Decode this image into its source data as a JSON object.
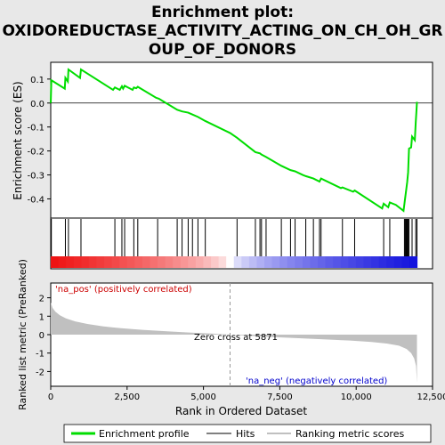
{
  "chart_data": {
    "type": "line",
    "title_lines": [
      "Enrichment plot:",
      "OXIDOREDUCTASE_ACTIVITY_ACTING_ON_CH_OH_GR",
      "OUP_OF_DONORS"
    ],
    "colors": {
      "es_line": "#00dd00",
      "hits": "#000000",
      "ranking": "#c0c0c0",
      "pos_bar": "#ee1111",
      "neg_bar": "#1111dd"
    },
    "es_panel": {
      "ylabel": "Enrichment score (ES)",
      "ylim": [
        -0.48,
        0.17
      ],
      "yticks": [
        -0.4,
        -0.3,
        -0.2,
        -0.1,
        0.0,
        0.1
      ],
      "ytick_labels": [
        "-0.4",
        "-0.3",
        "-0.2",
        "-0.1",
        "0.0",
        "0.1"
      ],
      "points": [
        [
          0,
          0.0
        ],
        [
          20,
          0.095
        ],
        [
          460,
          0.06
        ],
        [
          480,
          0.105
        ],
        [
          560,
          0.09
        ],
        [
          580,
          0.14
        ],
        [
          960,
          0.105
        ],
        [
          990,
          0.14
        ],
        [
          2040,
          0.055
        ],
        [
          2100,
          0.065
        ],
        [
          2260,
          0.055
        ],
        [
          2330,
          0.07
        ],
        [
          2370,
          0.06
        ],
        [
          2420,
          0.072
        ],
        [
          2680,
          0.055
        ],
        [
          2720,
          0.065
        ],
        [
          2800,
          0.062
        ],
        [
          2850,
          0.068
        ],
        [
          3450,
          0.022
        ],
        [
          3500,
          0.02
        ],
        [
          3540,
          0.018
        ],
        [
          4140,
          -0.028
        ],
        [
          4300,
          -0.035
        ],
        [
          4500,
          -0.04
        ],
        [
          4640,
          -0.048
        ],
        [
          4820,
          -0.058
        ],
        [
          5060,
          -0.075
        ],
        [
          5871,
          -0.125
        ],
        [
          6100,
          -0.145
        ],
        [
          6700,
          -0.205
        ],
        [
          6850,
          -0.21
        ],
        [
          6900,
          -0.215
        ],
        [
          7050,
          -0.225
        ],
        [
          7550,
          -0.262
        ],
        [
          7850,
          -0.28
        ],
        [
          8000,
          -0.285
        ],
        [
          8250,
          -0.3
        ],
        [
          8350,
          -0.305
        ],
        [
          8600,
          -0.315
        ],
        [
          8800,
          -0.328
        ],
        [
          8850,
          -0.315
        ],
        [
          9500,
          -0.355
        ],
        [
          9550,
          -0.352
        ],
        [
          9900,
          -0.37
        ],
        [
          9950,
          -0.365
        ],
        [
          10850,
          -0.44
        ],
        [
          10900,
          -0.42
        ],
        [
          11050,
          -0.435
        ],
        [
          11100,
          -0.415
        ],
        [
          11300,
          -0.425
        ],
        [
          11550,
          -0.45
        ],
        [
          11580,
          -0.42
        ],
        [
          11610,
          -0.39
        ],
        [
          11640,
          -0.36
        ],
        [
          11670,
          -0.33
        ],
        [
          11700,
          -0.29
        ],
        [
          11730,
          -0.19
        ],
        [
          11800,
          -0.185
        ],
        [
          11830,
          -0.14
        ],
        [
          11920,
          -0.155
        ],
        [
          11950,
          -0.08
        ],
        [
          11970,
          -0.04
        ],
        [
          11990,
          0.005
        ]
      ]
    },
    "hits": [
      0,
      20,
      480,
      580,
      990,
      2100,
      2330,
      2420,
      2720,
      2850,
      3500,
      4140,
      4300,
      4500,
      4640,
      4820,
      5060,
      6100,
      6700,
      6850,
      6900,
      7050,
      7550,
      7850,
      8000,
      8350,
      8600,
      8800,
      8850,
      9550,
      9950,
      10900,
      11100,
      11580,
      11610,
      11640,
      11670,
      11700,
      11730,
      11830,
      11950,
      11990
    ],
    "ranking_panel": {
      "ylabel": "Ranked list metric (PreRanked)",
      "xlabel": "Rank in Ordered Dataset",
      "ylim": [
        -2.8,
        2.8
      ],
      "yticks": [
        -2,
        -1,
        0,
        1,
        2
      ],
      "ytick_labels": [
        "-2",
        "-1",
        "0",
        "1",
        "2"
      ],
      "xlim": [
        0,
        12500
      ],
      "xticks": [
        0,
        2500,
        5000,
        7500,
        10000,
        12500
      ],
      "xtick_labels": [
        "0",
        "2,500",
        "5,000",
        "7,500",
        "10,000",
        "12,500"
      ],
      "curve": [
        [
          0,
          1.75
        ],
        [
          60,
          1.45
        ],
        [
          150,
          1.25
        ],
        [
          300,
          1.05
        ],
        [
          500,
          0.88
        ],
        [
          800,
          0.72
        ],
        [
          1200,
          0.58
        ],
        [
          1700,
          0.45
        ],
        [
          2300,
          0.35
        ],
        [
          3000,
          0.26
        ],
        [
          3800,
          0.18
        ],
        [
          4600,
          0.11
        ],
        [
          5400,
          0.05
        ],
        [
          5871,
          0.0
        ],
        [
          6500,
          -0.06
        ],
        [
          7300,
          -0.13
        ],
        [
          8200,
          -0.2
        ],
        [
          9000,
          -0.26
        ],
        [
          9800,
          -0.32
        ],
        [
          10500,
          -0.4
        ],
        [
          11000,
          -0.48
        ],
        [
          11400,
          -0.6
        ],
        [
          11650,
          -0.78
        ],
        [
          11800,
          -1.0
        ],
        [
          11900,
          -1.3
        ],
        [
          11960,
          -1.7
        ],
        [
          11990,
          -2.6
        ]
      ],
      "zero_cross_label": "Zero cross at 5871",
      "zero_cross": 5871,
      "pos_label": "'na_pos' (positively correlated)",
      "neg_label": "'na_neg' (negatively correlated)"
    },
    "n_genes": 11990,
    "legend": {
      "items": [
        {
          "label": "Enrichment profile",
          "kind": "line"
        },
        {
          "label": "Hits",
          "kind": "hit"
        },
        {
          "label": "Ranking metric scores",
          "kind": "rank"
        }
      ]
    }
  }
}
